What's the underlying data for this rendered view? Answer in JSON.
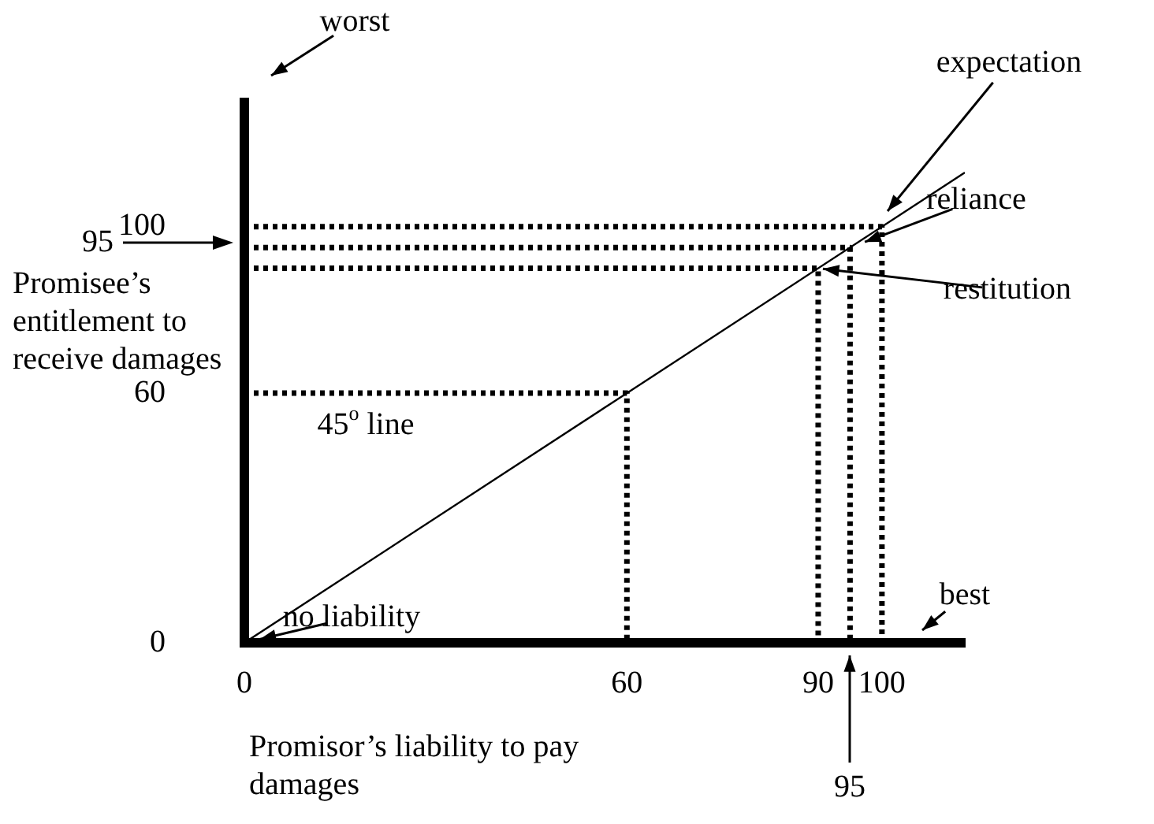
{
  "chart_data": {
    "type": "line",
    "xlabel": "Promisor’s liability to pay damages",
    "ylabel": "Promisee’s entitlement to receive damages",
    "xlim": [
      0,
      113
    ],
    "ylim": [
      0,
      131
    ],
    "xticks": [
      0,
      60,
      90,
      100
    ],
    "yticks": [
      0,
      60,
      100
    ],
    "grid": false,
    "legend": false,
    "marker": "none",
    "series": [
      {
        "x": [
          0,
          113
        ],
        "values": [
          0,
          113
        ],
        "color": "#000000",
        "line_style": "solid"
      },
      {
        "x": [
          0,
          60,
          60
        ],
        "values": [
          60,
          60,
          0
        ],
        "color": "#000000",
        "line_style": "dotted"
      },
      {
        "x": [
          0,
          90,
          90
        ],
        "values": [
          90,
          90,
          0
        ],
        "color": "#000000",
        "line_style": "dotted"
      },
      {
        "x": [
          0,
          95,
          95
        ],
        "values": [
          95,
          95,
          0
        ],
        "color": "#000000",
        "line_style": "dotted"
      },
      {
        "x": [
          0,
          100,
          100
        ],
        "values": [
          100,
          100,
          0
        ],
        "color": "#000000",
        "line_style": "dotted"
      }
    ],
    "annotations": [
      "worst",
      "best",
      {
        "text": "no liability",
        "x": 0,
        "y": 0
      },
      "45$^{o}$ line",
      "expectation",
      {
        "text": "reliance",
        "x": 95,
        "y": 95
      },
      {
        "text": "restitution",
        "x": 90,
        "y": 90
      },
      "95",
      "95"
    ]
  }
}
